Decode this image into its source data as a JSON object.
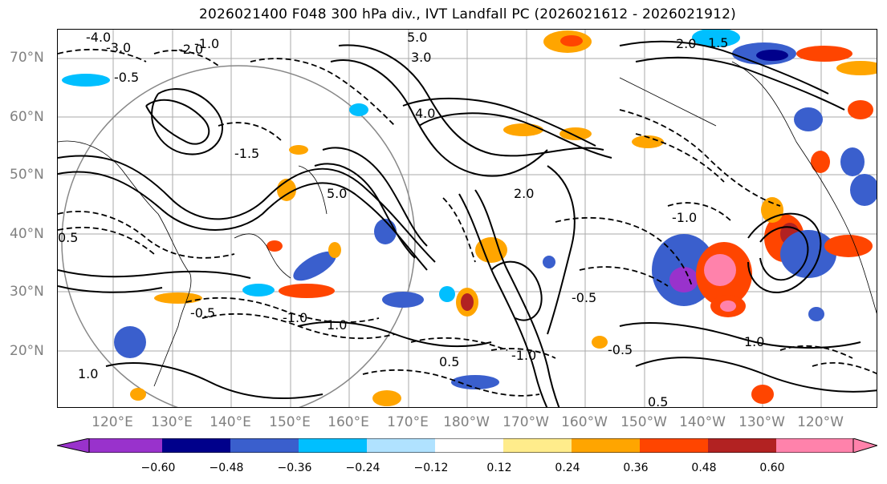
{
  "title": "2026021400 F048 300 hPa div., IVT Landfall PC (2026021612 - 2026021912)",
  "latitude_labels": [
    "70°N",
    "60°N",
    "50°N",
    "40°N",
    "30°N",
    "20°N"
  ],
  "longitude_labels": [
    "120°E",
    "130°E",
    "140°E",
    "150°E",
    "160°E",
    "170°E",
    "180°W",
    "170°W",
    "160°W",
    "150°W",
    "140°W",
    "130°W",
    "120°W"
  ],
  "contour_labels": [
    "-4.0",
    "-3.0",
    "-2.0",
    "-1.0",
    "-0.5",
    "0.5",
    "1.0",
    "1.5",
    "2.0",
    "3.0",
    "4.0",
    "5.0",
    "-0.5",
    "1.0",
    "-1.0",
    "0.5",
    "-0.5",
    "1.0",
    "5.0",
    "-1.5",
    "-0.5",
    "-1.0",
    "2.0",
    "-1.0",
    "0.5"
  ],
  "colorbar": {
    "tick_labels": [
      "−0.60",
      "−0.48",
      "−0.36",
      "−0.24",
      "−0.12",
      "0.12",
      "0.24",
      "0.36",
      "0.48",
      "0.60"
    ],
    "colors": [
      "#9932cc",
      "#00008b",
      "#3a5fcd",
      "#00bfff",
      "#b0e2ff",
      "#ffffff",
      "#ffec8b",
      "#ffa500",
      "#ff4500",
      "#b22222",
      "#ff82ab",
      "#ff82ab"
    ]
  },
  "styles": {
    "grid_color": "#aaaaaa",
    "label_color": "#808080"
  }
}
